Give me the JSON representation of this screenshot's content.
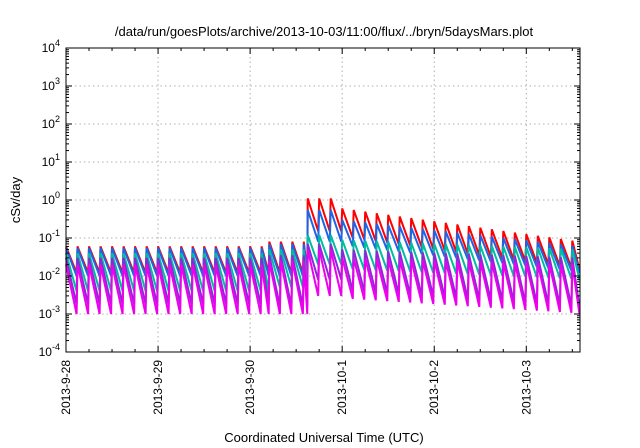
{
  "chart_data": {
    "type": "line",
    "title": "/data/run/goesPlots/archive/2013-10-03/11:00/flux/../bryn/5daysMars.plot",
    "xlabel": "Coordinated Universal Time (UTC)",
    "ylabel": "cSv/day",
    "yscale": "log",
    "ylim": [
      0.0001,
      10000
    ],
    "xlim": [
      "2013-09-28",
      "2013-10-03 14:00"
    ],
    "grid": true,
    "y_ticks": [
      {
        "base": "10",
        "exp": "-4",
        "value": 0.0001
      },
      {
        "base": "10",
        "exp": "-3",
        "value": 0.001
      },
      {
        "base": "10",
        "exp": "-2",
        "value": 0.01
      },
      {
        "base": "10",
        "exp": "-1",
        "value": 0.1
      },
      {
        "base": "10",
        "exp": "0",
        "value": 1
      },
      {
        "base": "10",
        "exp": "1",
        "value": 10
      },
      {
        "base": "10",
        "exp": "2",
        "value": 100
      },
      {
        "base": "10",
        "exp": "3",
        "value": 1000
      },
      {
        "base": "10",
        "exp": "4",
        "value": 10000
      }
    ],
    "x_ticks": [
      "2013-9-28",
      "2013-9-29",
      "2013-9-30",
      "2013-10-1",
      "2013-10-2",
      "2013-10-3"
    ],
    "series": [
      {
        "color": "#ff0000",
        "period_hours": 3,
        "regimes": [
          {
            "x": [
              "2013-09-28",
              "2013-09-30 05:00"
            ],
            "peak": 0.06,
            "trough": 0.012
          },
          {
            "x": [
              "2013-09-30 05:00",
              "2013-09-30 15:00"
            ],
            "peak": 0.08,
            "trough": 0.012
          },
          {
            "x": [
              "2013-09-30 15:00",
              "2013-10-01 00:00"
            ],
            "peak": 1.1,
            "trough": 0.15
          },
          {
            "x": [
              "2013-10-01 00:00",
              "2013-10-03 14:00"
            ],
            "peak": 0.6,
            "trough": 0.1,
            "end_peak": 0.08,
            "end_trough": 0.014
          }
        ]
      },
      {
        "color": "#1e64e6",
        "period_hours": 3,
        "regimes": [
          {
            "x": [
              "2013-09-28",
              "2013-09-30 05:00"
            ],
            "peak": 0.055,
            "trough": 0.01
          },
          {
            "x": [
              "2013-09-30 05:00",
              "2013-09-30 15:00"
            ],
            "peak": 0.07,
            "trough": 0.01
          },
          {
            "x": [
              "2013-09-30 15:00",
              "2013-10-01 00:00"
            ],
            "peak": 0.55,
            "trough": 0.08
          },
          {
            "x": [
              "2013-10-01 00:00",
              "2013-10-03 14:00"
            ],
            "peak": 0.3,
            "trough": 0.06,
            "end_peak": 0.06,
            "end_trough": 0.012
          }
        ]
      },
      {
        "color": "#00bca0",
        "period_hours": 3,
        "regimes": [
          {
            "x": [
              "2013-09-28",
              "2013-09-30 05:00"
            ],
            "peak": 0.04,
            "trough": 0.004
          },
          {
            "x": [
              "2013-09-30 05:00",
              "2013-09-30 15:00"
            ],
            "peak": 0.05,
            "trough": 0.005
          },
          {
            "x": [
              "2013-09-30 15:00",
              "2013-10-01 00:00"
            ],
            "peak": 0.12,
            "trough": 0.02
          },
          {
            "x": [
              "2013-10-01 00:00",
              "2013-10-03 14:00"
            ],
            "peak": 0.09,
            "trough": 0.015,
            "end_peak": 0.05,
            "end_trough": 0.008
          }
        ]
      },
      {
        "color": "#8a2ad6",
        "period_hours": 3,
        "regimes": [
          {
            "x": [
              "2013-09-28",
              "2013-09-30 05:00"
            ],
            "peak": 0.03,
            "trough": 0.0018
          },
          {
            "x": [
              "2013-09-30 05:00",
              "2013-09-30 15:00"
            ],
            "peak": 0.035,
            "trough": 0.0016
          },
          {
            "x": [
              "2013-09-30 15:00",
              "2013-10-01 00:00"
            ],
            "peak": 0.07,
            "trough": 0.008
          },
          {
            "x": [
              "2013-10-01 00:00",
              "2013-10-03 14:00"
            ],
            "peak": 0.05,
            "trough": 0.004,
            "end_peak": 0.03,
            "end_trough": 0.0015
          }
        ]
      },
      {
        "color": "#ee00ee",
        "period_hours": 3,
        "regimes": [
          {
            "x": [
              "2013-09-28",
              "2013-09-30 05:00"
            ],
            "peak": 0.02,
            "trough": 0.001
          },
          {
            "x": [
              "2013-09-30 05:00",
              "2013-09-30 15:00"
            ],
            "peak": 0.025,
            "trough": 0.001
          },
          {
            "x": [
              "2013-09-30 15:00",
              "2013-10-01 00:00"
            ],
            "peak": 0.05,
            "trough": 0.003
          },
          {
            "x": [
              "2013-10-01 00:00",
              "2013-10-03 14:00"
            ],
            "peak": 0.03,
            "trough": 0.0025,
            "end_peak": 0.02,
            "end_trough": 0.001
          }
        ]
      }
    ]
  }
}
